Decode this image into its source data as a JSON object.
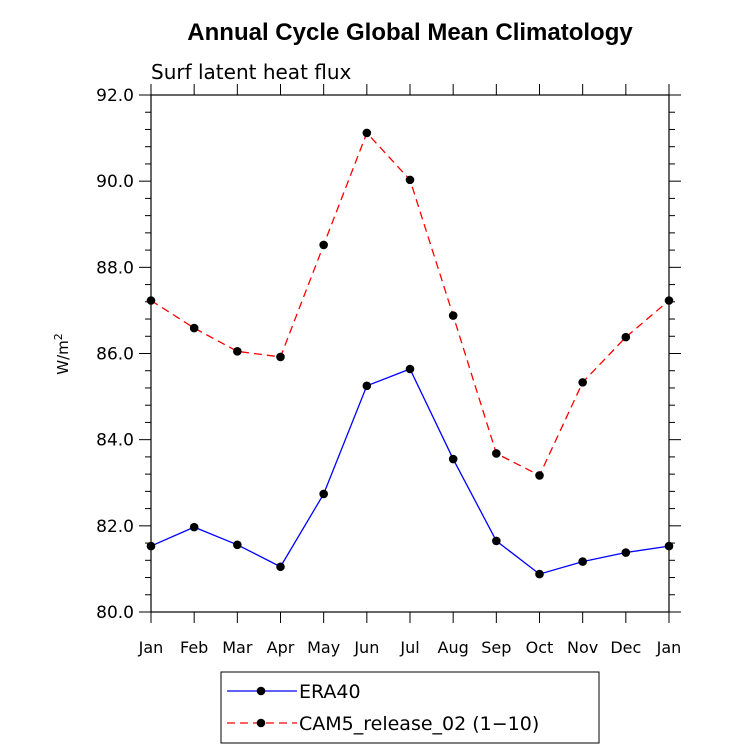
{
  "chart_data": {
    "type": "line",
    "title": "Annual Cycle Global Mean Climatology",
    "subtitle": "Surf latent heat flux",
    "ylabel": "W/m",
    "ylabel_superscript": "2",
    "xlabel": "",
    "categories": [
      "Jan",
      "Feb",
      "Mar",
      "Apr",
      "May",
      "Jun",
      "Jul",
      "Aug",
      "Sep",
      "Oct",
      "Nov",
      "Dec",
      "Jan"
    ],
    "ylim": [
      80.0,
      92.0
    ],
    "yticks": [
      80.0,
      82.0,
      84.0,
      86.0,
      88.0,
      90.0,
      92.0
    ],
    "ytick_labels": [
      "80.0",
      "82.0",
      "84.0",
      "86.0",
      "88.0",
      "90.0",
      "92.0"
    ],
    "grid": false,
    "legend_position": "bottom",
    "series": [
      {
        "name": "ERA40",
        "color": "#0000ff",
        "dash": "solid",
        "values": [
          81.53,
          81.97,
          81.56,
          81.05,
          82.74,
          85.25,
          85.64,
          83.55,
          81.65,
          80.88,
          81.17,
          81.38,
          81.53
        ]
      },
      {
        "name": "CAM5_release_02 (1−10)",
        "color": "#ff0000",
        "dash": "dashed",
        "values": [
          87.23,
          86.59,
          86.05,
          85.92,
          88.52,
          91.12,
          90.03,
          86.88,
          83.68,
          83.17,
          85.33,
          86.38,
          87.23
        ]
      }
    ]
  }
}
